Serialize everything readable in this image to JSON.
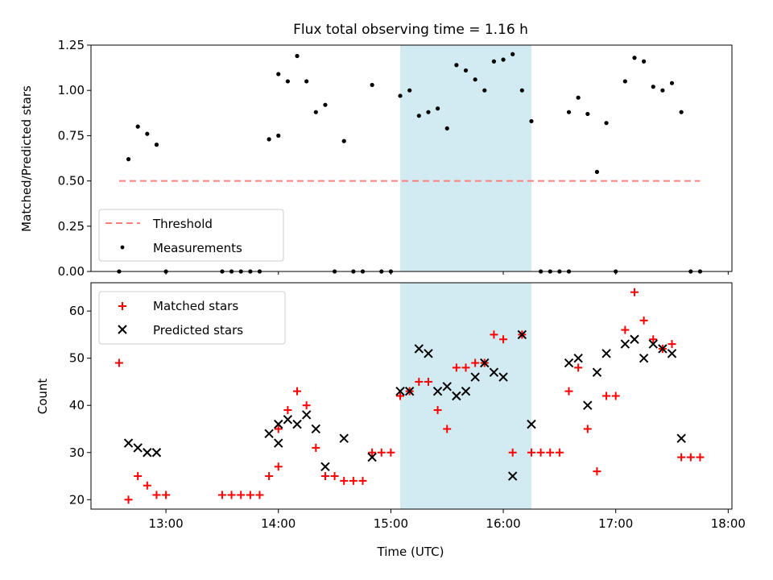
{
  "chart_data": [
    {
      "type": "scatter",
      "title": "Flux total observing time = 1.16 h",
      "ylabel": "Matched/Predicted stars",
      "xlim": [
        "12:20",
        "18:02"
      ],
      "ylim": [
        0,
        1.25
      ],
      "yticks": [
        "0.00",
        "0.25",
        "0.50",
        "0.75",
        "1.00",
        "1.25"
      ],
      "shaded_region": {
        "x": [
          "15:05",
          "16:15"
        ],
        "color": "#add8e6"
      },
      "threshold": {
        "name": "Threshold",
        "value": 0.5,
        "x": [
          "12:35",
          "17:45"
        ],
        "color": "#ff7f7f"
      },
      "legend": {
        "position": "lower-left"
      },
      "series": [
        {
          "name": "Measurements",
          "color": "#000000",
          "marker": "dot",
          "points": [
            [
              "12:35",
              0
            ],
            [
              "12:40",
              0.62
            ],
            [
              "12:45",
              0.8
            ],
            [
              "12:50",
              0.76
            ],
            [
              "12:55",
              0.7
            ],
            [
              "13:00",
              0
            ],
            [
              "13:30",
              0
            ],
            [
              "13:35",
              0
            ],
            [
              "13:40",
              0
            ],
            [
              "13:45",
              0
            ],
            [
              "13:50",
              0
            ],
            [
              "13:55",
              0.73
            ],
            [
              "14:00",
              0.75
            ],
            [
              "14:00",
              1.09
            ],
            [
              "14:05",
              1.05
            ],
            [
              "14:10",
              1.19
            ],
            [
              "14:15",
              1.05
            ],
            [
              "14:20",
              0.88
            ],
            [
              "14:25",
              0.92
            ],
            [
              "14:30",
              0
            ],
            [
              "14:35",
              0.72
            ],
            [
              "14:40",
              0
            ],
            [
              "14:45",
              0
            ],
            [
              "14:50",
              1.03
            ],
            [
              "14:55",
              0
            ],
            [
              "15:00",
              0
            ],
            [
              "15:05",
              0.97
            ],
            [
              "15:10",
              1.0
            ],
            [
              "15:15",
              0.86
            ],
            [
              "15:20",
              0.88
            ],
            [
              "15:25",
              0.9
            ],
            [
              "15:30",
              0.79
            ],
            [
              "15:35",
              1.14
            ],
            [
              "15:40",
              1.11
            ],
            [
              "15:45",
              1.06
            ],
            [
              "15:50",
              1.0
            ],
            [
              "15:55",
              1.16
            ],
            [
              "16:00",
              1.17
            ],
            [
              "16:05",
              1.2
            ],
            [
              "16:10",
              1.0
            ],
            [
              "16:15",
              0.83
            ],
            [
              "16:20",
              0
            ],
            [
              "16:25",
              0
            ],
            [
              "16:30",
              0
            ],
            [
              "16:35",
              0
            ],
            [
              "16:35",
              0.88
            ],
            [
              "16:40",
              0.96
            ],
            [
              "16:45",
              0.87
            ],
            [
              "16:50",
              0.55
            ],
            [
              "16:55",
              0.82
            ],
            [
              "17:00",
              0
            ],
            [
              "17:05",
              1.05
            ],
            [
              "17:10",
              1.18
            ],
            [
              "17:15",
              1.16
            ],
            [
              "17:20",
              1.02
            ],
            [
              "17:25",
              1.0
            ],
            [
              "17:30",
              1.04
            ],
            [
              "17:35",
              0.88
            ],
            [
              "17:40",
              0
            ],
            [
              "17:45",
              0
            ]
          ]
        }
      ]
    },
    {
      "type": "scatter",
      "xlabel": "Time (UTC)",
      "ylabel": "Count",
      "xlim": [
        "12:20",
        "18:02"
      ],
      "ylim": [
        18,
        66
      ],
      "xticks": [
        "13:00",
        "14:00",
        "15:00",
        "16:00",
        "17:00",
        "18:00"
      ],
      "yticks": [
        "20",
        "30",
        "40",
        "50",
        "60"
      ],
      "shaded_region": {
        "x": [
          "15:05",
          "16:15"
        ],
        "color": "#add8e6"
      },
      "legend": {
        "position": "top-left"
      },
      "series": [
        {
          "name": "Matched stars",
          "color": "#ff0000",
          "marker": "plus",
          "points": [
            [
              "12:35",
              49
            ],
            [
              "12:40",
              20
            ],
            [
              "12:45",
              25
            ],
            [
              "12:50",
              23
            ],
            [
              "12:55",
              21
            ],
            [
              "13:00",
              21
            ],
            [
              "13:30",
              21
            ],
            [
              "13:35",
              21
            ],
            [
              "13:40",
              21
            ],
            [
              "13:45",
              21
            ],
            [
              "13:50",
              21
            ],
            [
              "13:55",
              25
            ],
            [
              "14:00",
              27
            ],
            [
              "14:00",
              35
            ],
            [
              "14:05",
              39
            ],
            [
              "14:10",
              43
            ],
            [
              "14:15",
              40
            ],
            [
              "14:20",
              31
            ],
            [
              "14:25",
              25
            ],
            [
              "14:30",
              25
            ],
            [
              "14:35",
              24
            ],
            [
              "14:40",
              24
            ],
            [
              "14:45",
              24
            ],
            [
              "14:50",
              30
            ],
            [
              "14:55",
              30
            ],
            [
              "15:00",
              30
            ],
            [
              "15:05",
              42
            ],
            [
              "15:10",
              43
            ],
            [
              "15:15",
              45
            ],
            [
              "15:20",
              45
            ],
            [
              "15:25",
              39
            ],
            [
              "15:30",
              35
            ],
            [
              "15:35",
              48
            ],
            [
              "15:40",
              48
            ],
            [
              "15:45",
              49
            ],
            [
              "15:50",
              49
            ],
            [
              "15:55",
              55
            ],
            [
              "16:00",
              54
            ],
            [
              "16:05",
              30
            ],
            [
              "16:10",
              55
            ],
            [
              "16:15",
              30
            ],
            [
              "16:20",
              30
            ],
            [
              "16:25",
              30
            ],
            [
              "16:30",
              30
            ],
            [
              "16:35",
              43
            ],
            [
              "16:40",
              48
            ],
            [
              "16:45",
              35
            ],
            [
              "16:50",
              26
            ],
            [
              "16:55",
              42
            ],
            [
              "17:00",
              42
            ],
            [
              "17:05",
              56
            ],
            [
              "17:10",
              64
            ],
            [
              "17:15",
              58
            ],
            [
              "17:20",
              54
            ],
            [
              "17:25",
              52
            ],
            [
              "17:30",
              53
            ],
            [
              "17:35",
              29
            ],
            [
              "17:40",
              29
            ],
            [
              "17:45",
              29
            ]
          ]
        },
        {
          "name": "Predicted stars",
          "color": "#000000",
          "marker": "x",
          "points": [
            [
              "12:40",
              32
            ],
            [
              "12:45",
              31
            ],
            [
              "12:50",
              30
            ],
            [
              "12:55",
              30
            ],
            [
              "13:55",
              34
            ],
            [
              "14:00",
              36
            ],
            [
              "14:00",
              32
            ],
            [
              "14:05",
              37
            ],
            [
              "14:10",
              36
            ],
            [
              "14:15",
              38
            ],
            [
              "14:20",
              35
            ],
            [
              "14:25",
              27
            ],
            [
              "14:35",
              33
            ],
            [
              "14:50",
              29
            ],
            [
              "15:05",
              43
            ],
            [
              "15:10",
              43
            ],
            [
              "15:15",
              52
            ],
            [
              "15:20",
              51
            ],
            [
              "15:25",
              43
            ],
            [
              "15:30",
              44
            ],
            [
              "15:35",
              42
            ],
            [
              "15:40",
              43
            ],
            [
              "15:45",
              46
            ],
            [
              "15:50",
              49
            ],
            [
              "15:55",
              47
            ],
            [
              "16:00",
              46
            ],
            [
              "16:05",
              25
            ],
            [
              "16:10",
              55
            ],
            [
              "16:15",
              36
            ],
            [
              "16:35",
              49
            ],
            [
              "16:40",
              50
            ],
            [
              "16:45",
              40
            ],
            [
              "16:50",
              47
            ],
            [
              "16:55",
              51
            ],
            [
              "17:05",
              53
            ],
            [
              "17:10",
              54
            ],
            [
              "17:15",
              50
            ],
            [
              "17:20",
              53
            ],
            [
              "17:25",
              52
            ],
            [
              "17:30",
              51
            ],
            [
              "17:35",
              33
            ]
          ]
        }
      ]
    }
  ]
}
